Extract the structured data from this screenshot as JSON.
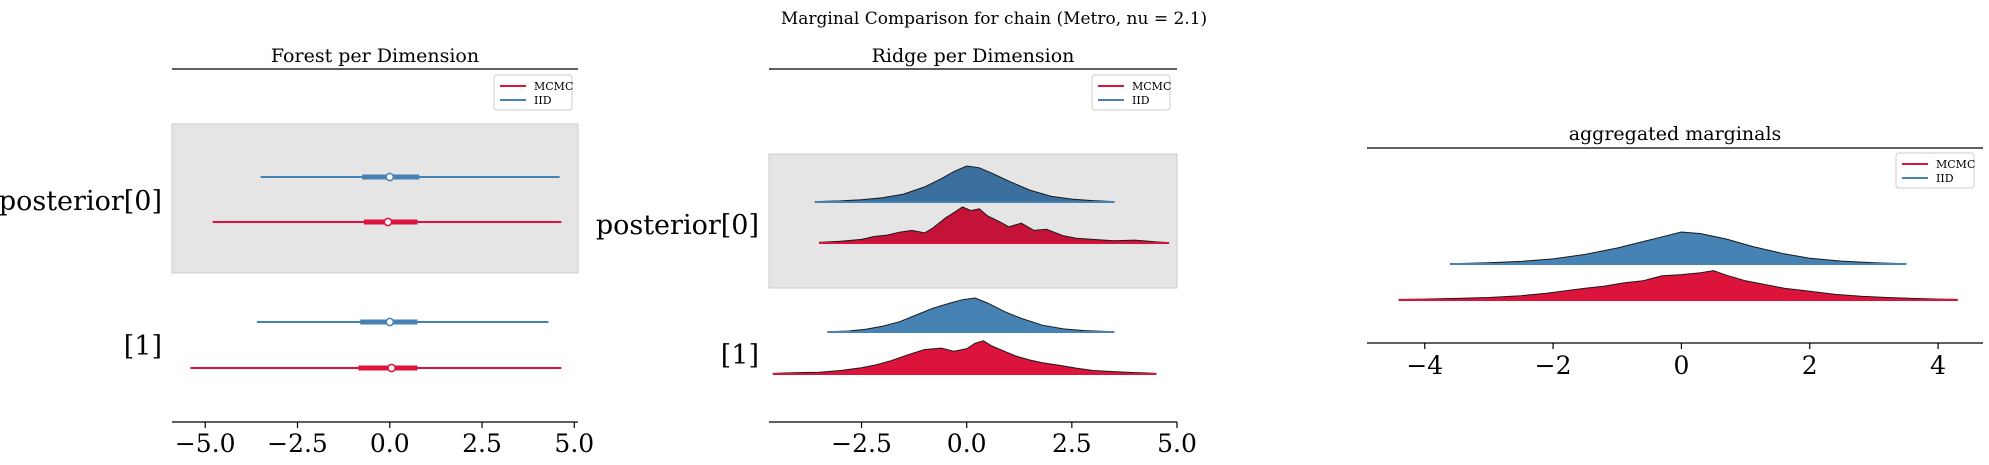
{
  "figure": {
    "suptitle": "Marginal Comparison for chain (Metro, nu = 2.1)"
  },
  "colors": {
    "mcmc": "#dc143c",
    "iid": "#4682b4",
    "band": "#e5e5e5",
    "mcmc_dark": "#c41238",
    "iid_dark": "#3a6f9e"
  },
  "chart_data": [
    {
      "type": "forest",
      "title": "Forest per Dimension",
      "xlim": [
        -5.9,
        5.1
      ],
      "xticks": [
        -5.0,
        -2.5,
        0.0,
        2.5,
        5.0
      ],
      "xtick_labels": [
        "−5.0",
        "−2.5",
        "0.0",
        "2.5",
        "5.0"
      ],
      "rows": [
        "posterior[0]",
        "[1]"
      ],
      "highlight_row": 0,
      "legend": {
        "position": "top-right",
        "entries": [
          "MCMC",
          "IID"
        ]
      },
      "series": [
        {
          "name": "IID",
          "intervals": [
            {
              "row": 0,
              "hdi_low": -3.5,
              "hdi_high": 4.6,
              "iqr_low": -0.75,
              "iqr_high": 0.8,
              "median": 0.0
            },
            {
              "row": 1,
              "hdi_low": -3.6,
              "hdi_high": 4.3,
              "iqr_low": -0.8,
              "iqr_high": 0.75,
              "median": 0.0
            }
          ]
        },
        {
          "name": "MCMC",
          "intervals": [
            {
              "row": 0,
              "hdi_low": -4.8,
              "hdi_high": 4.65,
              "iqr_low": -0.7,
              "iqr_high": 0.75,
              "median": -0.05
            },
            {
              "row": 1,
              "hdi_low": -5.4,
              "hdi_high": 4.65,
              "iqr_low": -0.85,
              "iqr_high": 0.75,
              "median": 0.05
            }
          ]
        }
      ]
    },
    {
      "type": "ridge",
      "title": "Ridge per Dimension",
      "xlim": [
        -4.7,
        5.0
      ],
      "xticks": [
        -2.5,
        0.0,
        2.5,
        5.0
      ],
      "xtick_labels": [
        "−2.5",
        "0.0",
        "2.5",
        "5.0"
      ],
      "rows": [
        "posterior[0]",
        "[1]"
      ],
      "highlight_row": 0,
      "legend": {
        "position": "top-right",
        "entries": [
          "MCMC",
          "IID"
        ]
      },
      "series": [
        {
          "name": "IID",
          "row": 0,
          "range": [
            -3.6,
            3.5
          ],
          "density": [
            [
              -3.6,
              0.01
            ],
            [
              -3.0,
              0.03
            ],
            [
              -2.5,
              0.06
            ],
            [
              -2.0,
              0.12
            ],
            [
              -1.5,
              0.22
            ],
            [
              -1.0,
              0.42
            ],
            [
              -0.6,
              0.65
            ],
            [
              -0.3,
              0.85
            ],
            [
              0.0,
              1.0
            ],
            [
              0.3,
              0.95
            ],
            [
              0.6,
              0.8
            ],
            [
              1.0,
              0.58
            ],
            [
              1.5,
              0.33
            ],
            [
              2.0,
              0.16
            ],
            [
              2.5,
              0.08
            ],
            [
              3.0,
              0.04
            ],
            [
              3.5,
              0.01
            ]
          ]
        },
        {
          "name": "MCMC",
          "row": 0,
          "range": [
            -3.5,
            4.8
          ],
          "density": [
            [
              -3.5,
              0.02
            ],
            [
              -3.0,
              0.05
            ],
            [
              -2.5,
              0.1
            ],
            [
              -2.2,
              0.18
            ],
            [
              -1.9,
              0.22
            ],
            [
              -1.6,
              0.3
            ],
            [
              -1.3,
              0.35
            ],
            [
              -1.0,
              0.28
            ],
            [
              -0.8,
              0.42
            ],
            [
              -0.5,
              0.7
            ],
            [
              -0.3,
              0.85
            ],
            [
              -0.1,
              1.0
            ],
            [
              0.1,
              0.9
            ],
            [
              0.3,
              0.95
            ],
            [
              0.5,
              0.75
            ],
            [
              0.8,
              0.58
            ],
            [
              1.0,
              0.45
            ],
            [
              1.3,
              0.55
            ],
            [
              1.6,
              0.35
            ],
            [
              1.9,
              0.38
            ],
            [
              2.3,
              0.2
            ],
            [
              2.6,
              0.13
            ],
            [
              3.0,
              0.1
            ],
            [
              3.5,
              0.06
            ],
            [
              4.0,
              0.08
            ],
            [
              4.5,
              0.03
            ],
            [
              4.8,
              0.01
            ]
          ]
        },
        {
          "name": "IID",
          "row": 1,
          "range": [
            -3.3,
            3.5
          ],
          "density": [
            [
              -3.3,
              0.01
            ],
            [
              -2.8,
              0.03
            ],
            [
              -2.4,
              0.08
            ],
            [
              -2.0,
              0.17
            ],
            [
              -1.6,
              0.3
            ],
            [
              -1.2,
              0.5
            ],
            [
              -0.8,
              0.7
            ],
            [
              -0.4,
              0.85
            ],
            [
              -0.1,
              0.95
            ],
            [
              0.2,
              1.0
            ],
            [
              0.5,
              0.85
            ],
            [
              0.9,
              0.6
            ],
            [
              1.3,
              0.4
            ],
            [
              1.8,
              0.2
            ],
            [
              2.3,
              0.09
            ],
            [
              2.8,
              0.04
            ],
            [
              3.5,
              0.01
            ]
          ]
        },
        {
          "name": "MCMC",
          "row": 1,
          "range": [
            -4.6,
            4.5
          ],
          "density": [
            [
              -4.6,
              0.02
            ],
            [
              -4.0,
              0.04
            ],
            [
              -3.5,
              0.05
            ],
            [
              -3.0,
              0.1
            ],
            [
              -2.5,
              0.18
            ],
            [
              -2.2,
              0.25
            ],
            [
              -1.8,
              0.38
            ],
            [
              -1.4,
              0.55
            ],
            [
              -1.0,
              0.7
            ],
            [
              -0.6,
              0.74
            ],
            [
              -0.3,
              0.65
            ],
            [
              0.0,
              0.72
            ],
            [
              0.2,
              0.88
            ],
            [
              0.4,
              0.95
            ],
            [
              0.6,
              0.8
            ],
            [
              0.9,
              0.65
            ],
            [
              1.2,
              0.5
            ],
            [
              1.5,
              0.4
            ],
            [
              1.8,
              0.32
            ],
            [
              2.2,
              0.25
            ],
            [
              2.6,
              0.17
            ],
            [
              3.0,
              0.1
            ],
            [
              3.5,
              0.07
            ],
            [
              4.0,
              0.04
            ],
            [
              4.5,
              0.02
            ]
          ]
        }
      ]
    },
    {
      "type": "ridge",
      "title": "aggregated marginals",
      "xlim": [
        -4.9,
        4.7
      ],
      "xticks": [
        -4,
        -2,
        0,
        2,
        4
      ],
      "xtick_labels": [
        "−4",
        "−2",
        "0",
        "2",
        "4"
      ],
      "rows": [],
      "legend": {
        "position": "top-right",
        "entries": [
          "MCMC",
          "IID"
        ]
      },
      "series": [
        {
          "name": "IID",
          "row": 0,
          "range": [
            -3.6,
            3.5
          ],
          "density": [
            [
              -3.6,
              0.01
            ],
            [
              -3.0,
              0.04
            ],
            [
              -2.5,
              0.08
            ],
            [
              -2.0,
              0.16
            ],
            [
              -1.5,
              0.3
            ],
            [
              -1.0,
              0.5
            ],
            [
              -0.6,
              0.7
            ],
            [
              -0.3,
              0.85
            ],
            [
              0.0,
              1.0
            ],
            [
              0.3,
              0.95
            ],
            [
              0.7,
              0.78
            ],
            [
              1.1,
              0.55
            ],
            [
              1.6,
              0.32
            ],
            [
              2.0,
              0.18
            ],
            [
              2.5,
              0.09
            ],
            [
              3.0,
              0.04
            ],
            [
              3.5,
              0.01
            ]
          ]
        },
        {
          "name": "MCMC",
          "row": 1,
          "range": [
            -4.4,
            4.3
          ],
          "density": [
            [
              -4.4,
              0.02
            ],
            [
              -4.0,
              0.03
            ],
            [
              -3.5,
              0.05
            ],
            [
              -3.0,
              0.08
            ],
            [
              -2.5,
              0.14
            ],
            [
              -2.1,
              0.22
            ],
            [
              -1.8,
              0.3
            ],
            [
              -1.5,
              0.38
            ],
            [
              -1.2,
              0.45
            ],
            [
              -0.9,
              0.55
            ],
            [
              -0.6,
              0.62
            ],
            [
              -0.3,
              0.78
            ],
            [
              0.0,
              0.82
            ],
            [
              0.3,
              0.88
            ],
            [
              0.5,
              0.95
            ],
            [
              0.7,
              0.8
            ],
            [
              1.0,
              0.62
            ],
            [
              1.3,
              0.5
            ],
            [
              1.6,
              0.38
            ],
            [
              2.0,
              0.28
            ],
            [
              2.4,
              0.18
            ],
            [
              2.8,
              0.12
            ],
            [
              3.2,
              0.08
            ],
            [
              3.6,
              0.05
            ],
            [
              4.0,
              0.03
            ],
            [
              4.3,
              0.02
            ]
          ]
        }
      ]
    }
  ]
}
